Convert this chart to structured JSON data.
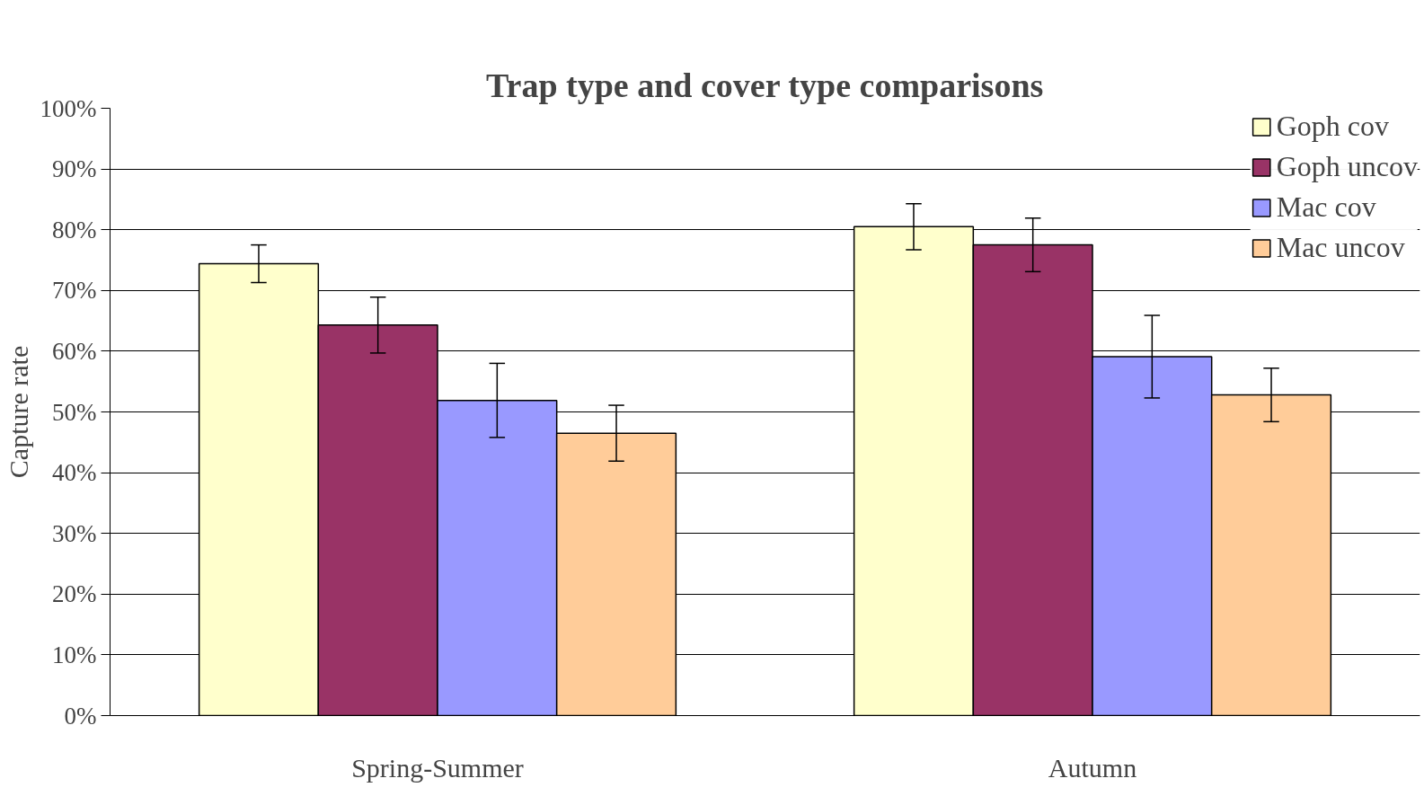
{
  "chart_data": {
    "type": "bar",
    "title": "Trap type and cover type comparisons",
    "ylabel": "Capture rate",
    "categories": [
      "Spring-Summer",
      "Autumn"
    ],
    "series": [
      {
        "name": "Goph cov",
        "color": "#ffffcc",
        "values": [
          74.4,
          80.5
        ],
        "errors": [
          3.1,
          3.8
        ]
      },
      {
        "name": "Goph uncov",
        "color": "#993366",
        "values": [
          64.3,
          77.5
        ],
        "errors": [
          4.6,
          4.4
        ]
      },
      {
        "name": "Mac cov",
        "color": "#9999ff",
        "values": [
          51.9,
          59.1
        ],
        "errors": [
          6.1,
          6.8
        ]
      },
      {
        "name": "Mac uncov",
        "color": "#ffcc99",
        "values": [
          46.5,
          52.8
        ],
        "errors": [
          4.6,
          4.4
        ]
      }
    ],
    "ylim": [
      0,
      100
    ],
    "yticks": [
      {
        "value": 0,
        "label": "0%"
      },
      {
        "value": 10,
        "label": "10%"
      },
      {
        "value": 20,
        "label": "20%"
      },
      {
        "value": 30,
        "label": "30%"
      },
      {
        "value": 40,
        "label": "40%"
      },
      {
        "value": 50,
        "label": "50%"
      },
      {
        "value": 60,
        "label": "60%"
      },
      {
        "value": 70,
        "label": "70%"
      },
      {
        "value": 80,
        "label": "80%"
      },
      {
        "value": 90,
        "label": "90%"
      },
      {
        "value": 100,
        "label": "100%"
      }
    ],
    "grid": "y",
    "legend": "top right"
  }
}
